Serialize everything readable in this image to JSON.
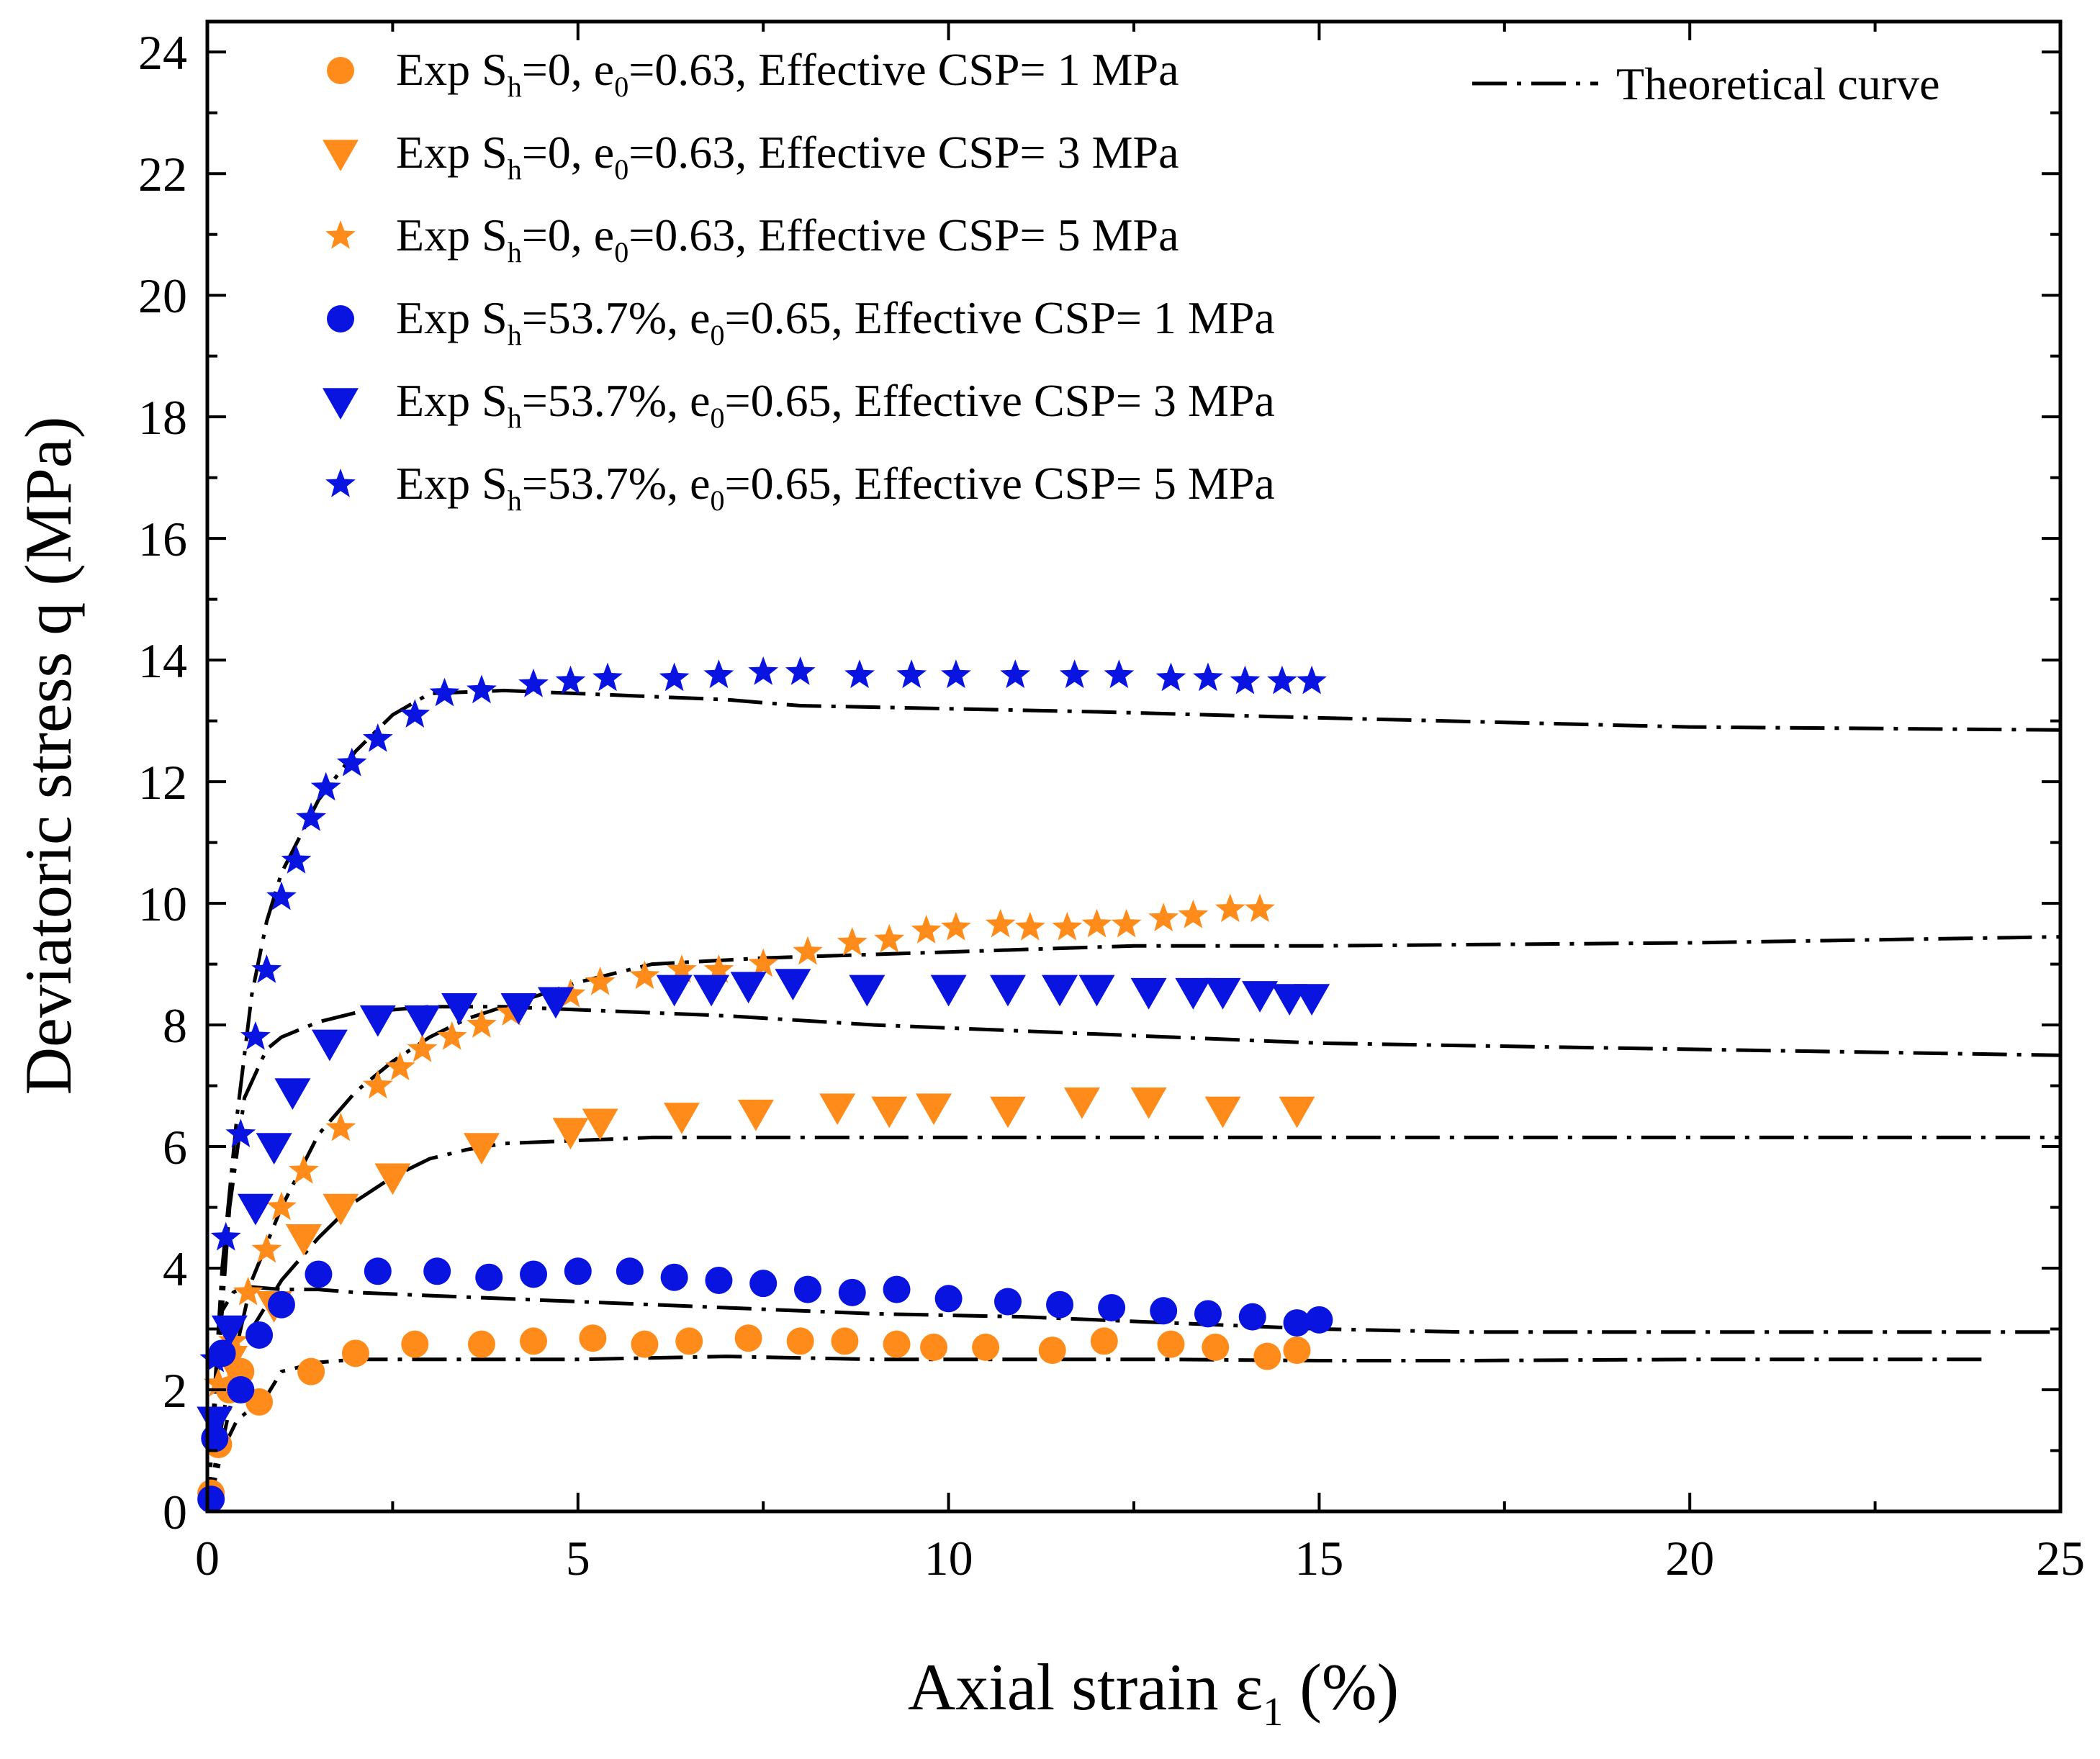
{
  "chart_data": {
    "type": "scatter",
    "title": "",
    "xlabel": "Axial strain ε",
    "xlabel_sub": "1",
    "xlabel_suffix": " (%)",
    "ylabel": "Deviatoric stress q (MPa)",
    "xlim": [
      0,
      25
    ],
    "ylim": [
      0,
      24.5
    ],
    "xticks": [
      0,
      5,
      10,
      15,
      20,
      25
    ],
    "yticks": [
      0,
      2,
      4,
      6,
      8,
      10,
      12,
      14,
      16,
      18,
      20,
      22,
      24
    ],
    "grid": false,
    "legend_position": "top",
    "colors": {
      "orange": "#ff8c1a",
      "blue": "#0a14e0",
      "theory": "#000000"
    },
    "series": [
      {
        "name": "Exp S_h=0, e_0=0.63, Effective CSP= 1 MPa",
        "label_parts": [
          "Exp S",
          "h",
          "=0, e",
          "0",
          "=0.63, Effective CSP= 1 MPa"
        ],
        "color": "orange",
        "marker": "circle",
        "x": [
          0.05,
          0.15,
          0.3,
          0.45,
          0.7,
          1.4,
          2.0,
          2.8,
          3.7,
          4.4,
          5.2,
          5.9,
          6.5,
          7.3,
          8.0,
          8.6,
          9.3,
          9.8,
          10.5,
          11.4,
          12.1,
          13.0,
          13.6,
          14.3,
          14.7
        ],
        "y": [
          0.3,
          1.1,
          2.0,
          2.3,
          1.8,
          2.3,
          2.6,
          2.75,
          2.75,
          2.8,
          2.85,
          2.75,
          2.8,
          2.85,
          2.8,
          2.8,
          2.75,
          2.7,
          2.7,
          2.65,
          2.8,
          2.75,
          2.7,
          2.55,
          2.65
        ]
      },
      {
        "name": "Exp S_h=0, e_0=0.63, Effective CSP= 3 MPa",
        "label_parts": [
          "Exp S",
          "h",
          "=0, e",
          "0",
          "=0.63, Effective CSP= 3 MPa"
        ],
        "color": "orange",
        "marker": "triangle",
        "x": [
          0.1,
          0.3,
          0.9,
          1.3,
          1.8,
          2.5,
          3.7,
          4.9,
          5.3,
          6.4,
          7.4,
          8.5,
          9.2,
          9.8,
          10.8,
          11.8,
          12.7,
          13.7,
          14.7
        ],
        "y": [
          1.5,
          2.5,
          3.4,
          4.5,
          5.0,
          5.5,
          6.0,
          6.25,
          6.4,
          6.5,
          6.55,
          6.65,
          6.6,
          6.65,
          6.6,
          6.75,
          6.75,
          6.6,
          6.6
        ]
      },
      {
        "name": "Exp S_h=0, e_0=0.63, Effective CSP= 5 MPa",
        "label_parts": [
          "Exp S",
          "h",
          "=0, e",
          "0",
          "=0.63, Effective CSP= 5 MPa"
        ],
        "color": "orange",
        "marker": "star",
        "x": [
          0.15,
          0.35,
          0.55,
          0.8,
          1.0,
          1.3,
          1.8,
          2.3,
          2.6,
          2.9,
          3.3,
          3.7,
          4.1,
          4.9,
          5.3,
          5.9,
          6.4,
          6.9,
          7.5,
          8.1,
          8.7,
          9.2,
          9.7,
          10.1,
          10.7,
          11.1,
          11.6,
          12.0,
          12.4,
          12.9,
          13.3,
          13.8,
          14.2
        ],
        "y": [
          2.1,
          2.8,
          3.6,
          4.3,
          5.0,
          5.6,
          6.3,
          7.0,
          7.3,
          7.6,
          7.8,
          8.0,
          8.2,
          8.5,
          8.7,
          8.8,
          8.9,
          8.9,
          9.0,
          9.2,
          9.35,
          9.4,
          9.55,
          9.6,
          9.65,
          9.6,
          9.6,
          9.65,
          9.65,
          9.75,
          9.8,
          9.9,
          9.9
        ]
      },
      {
        "name": "Exp S_h=53.7%, e_0=0.65, Effective CSP= 1 MPa",
        "label_parts": [
          "Exp S",
          "h",
          "=53.7%, e",
          "0",
          "=0.65, Effective CSP= 1 MPa"
        ],
        "color": "blue",
        "marker": "circle",
        "x": [
          0.05,
          0.1,
          0.2,
          0.45,
          0.7,
          1.0,
          1.5,
          2.3,
          3.1,
          3.8,
          4.4,
          5.0,
          5.7,
          6.3,
          6.9,
          7.5,
          8.1,
          8.7,
          9.3,
          10.0,
          10.8,
          11.5,
          12.2,
          12.9,
          13.5,
          14.1,
          14.7,
          15.0
        ],
        "y": [
          0.2,
          1.2,
          2.6,
          2.0,
          2.9,
          3.4,
          3.9,
          3.95,
          3.95,
          3.85,
          3.9,
          3.95,
          3.95,
          3.85,
          3.8,
          3.75,
          3.65,
          3.6,
          3.65,
          3.5,
          3.45,
          3.4,
          3.35,
          3.3,
          3.25,
          3.2,
          3.1,
          3.15
        ]
      },
      {
        "name": "Exp S_h=53.7%, e_0=0.65, Effective CSP= 3 MPa",
        "label_parts": [
          "Exp S",
          "h",
          "=53.7%, e",
          "0",
          "=0.65, Effective CSP= 3 MPa"
        ],
        "color": "blue",
        "marker": "triangle",
        "x": [
          0.1,
          0.3,
          0.65,
          0.9,
          1.15,
          1.65,
          2.3,
          2.9,
          3.4,
          4.2,
          4.7,
          6.3,
          6.8,
          7.3,
          7.9,
          8.9,
          10.0,
          10.8,
          11.5,
          12.0,
          12.7,
          13.3,
          13.7,
          14.2,
          14.6,
          14.9
        ],
        "y": [
          1.5,
          3.0,
          5.0,
          6.0,
          6.9,
          7.7,
          8.1,
          8.1,
          8.3,
          8.3,
          8.4,
          8.6,
          8.6,
          8.65,
          8.7,
          8.6,
          8.6,
          8.6,
          8.6,
          8.6,
          8.55,
          8.55,
          8.55,
          8.5,
          8.45,
          8.45
        ]
      },
      {
        "name": "Exp S_h=53.7%, e_0=0.65, Effective CSP= 5 MPa",
        "label_parts": [
          "Exp S",
          "h",
          "=53.7%, e",
          "0",
          "=0.65, Effective CSP= 5 MPa"
        ],
        "color": "blue",
        "marker": "star",
        "x": [
          0.1,
          0.25,
          0.45,
          0.65,
          0.8,
          1.0,
          1.2,
          1.4,
          1.6,
          1.95,
          2.3,
          2.8,
          3.2,
          3.7,
          4.4,
          4.9,
          5.4,
          6.3,
          6.9,
          7.5,
          8.0,
          8.8,
          9.5,
          10.1,
          10.9,
          11.7,
          12.3,
          13.0,
          13.5,
          14.0,
          14.5,
          14.9
        ],
        "y": [
          2.5,
          4.5,
          6.2,
          7.8,
          8.9,
          10.1,
          10.7,
          11.4,
          11.9,
          12.3,
          12.7,
          13.1,
          13.45,
          13.5,
          13.6,
          13.65,
          13.7,
          13.7,
          13.75,
          13.8,
          13.8,
          13.75,
          13.75,
          13.75,
          13.75,
          13.75,
          13.75,
          13.7,
          13.7,
          13.65,
          13.65,
          13.65
        ]
      }
    ],
    "theory_legend": "Theoretical curve",
    "theory": [
      {
        "x": [
          0,
          0.2,
          0.4,
          0.6,
          0.8,
          1.0,
          1.5,
          2.0,
          3.0,
          5.0,
          7.0,
          9.0,
          11.0,
          13.0,
          15.0,
          17.0,
          20.0,
          24.0
        ],
        "y": [
          0,
          1.0,
          1.5,
          1.7,
          1.9,
          2.3,
          2.45,
          2.5,
          2.5,
          2.5,
          2.55,
          2.5,
          2.5,
          2.5,
          2.48,
          2.48,
          2.5,
          2.5
        ]
      },
      {
        "x": [
          0,
          0.1,
          0.2,
          0.35,
          0.5,
          1.0,
          1.5,
          2.0,
          3.0,
          4.0,
          5.0,
          6.0,
          7.0,
          9.0,
          11.0,
          13.0,
          15.0,
          17.0,
          20.0,
          25.0
        ],
        "y": [
          0,
          2.0,
          3.3,
          3.6,
          3.7,
          3.65,
          3.65,
          3.6,
          3.55,
          3.5,
          3.45,
          3.4,
          3.35,
          3.25,
          3.2,
          3.1,
          3.0,
          2.95,
          2.95,
          2.95
        ]
      },
      {
        "x": [
          0,
          0.5,
          1.0,
          1.5,
          2.0,
          2.5,
          3.0,
          3.5,
          4.0,
          5.0,
          6.0,
          8.0,
          10.0,
          12.0,
          15.0,
          20.0,
          25.0
        ],
        "y": [
          0,
          2.8,
          3.8,
          4.5,
          5.1,
          5.5,
          5.8,
          5.95,
          6.05,
          6.1,
          6.15,
          6.15,
          6.15,
          6.15,
          6.15,
          6.15,
          6.15
        ]
      },
      {
        "x": [
          0,
          0.3,
          0.6,
          1.0,
          1.5,
          2.0,
          2.5,
          3.0,
          3.5,
          4.0,
          5.0,
          6.0,
          7.5,
          10.0,
          12.5,
          15.0,
          20.0,
          25.0
        ],
        "y": [
          0,
          2.2,
          3.8,
          5.0,
          6.2,
          6.9,
          7.4,
          7.8,
          8.1,
          8.3,
          8.7,
          9.0,
          9.1,
          9.2,
          9.3,
          9.3,
          9.35,
          9.45
        ]
      },
      {
        "x": [
          0,
          0.3,
          0.5,
          0.8,
          1.0,
          1.5,
          2.0,
          3.0,
          4.0,
          5.0,
          6.0,
          7.0,
          9.0,
          11.0,
          13.0,
          15.0,
          20.0,
          25.0
        ],
        "y": [
          0,
          5.0,
          6.8,
          7.6,
          7.8,
          8.05,
          8.2,
          8.3,
          8.3,
          8.25,
          8.2,
          8.15,
          8.0,
          7.9,
          7.8,
          7.7,
          7.6,
          7.5
        ]
      },
      {
        "x": [
          0,
          0.2,
          0.4,
          0.6,
          0.8,
          1.0,
          1.5,
          2.0,
          2.5,
          3.0,
          4.0,
          5.0,
          7.0,
          8.0,
          10.0,
          12.0,
          15.0,
          20.0,
          25.0
        ],
        "y": [
          0,
          4.0,
          6.5,
          8.5,
          9.7,
          10.5,
          11.7,
          12.5,
          13.1,
          13.45,
          13.5,
          13.45,
          13.35,
          13.25,
          13.2,
          13.15,
          13.05,
          12.9,
          12.85
        ]
      }
    ]
  }
}
